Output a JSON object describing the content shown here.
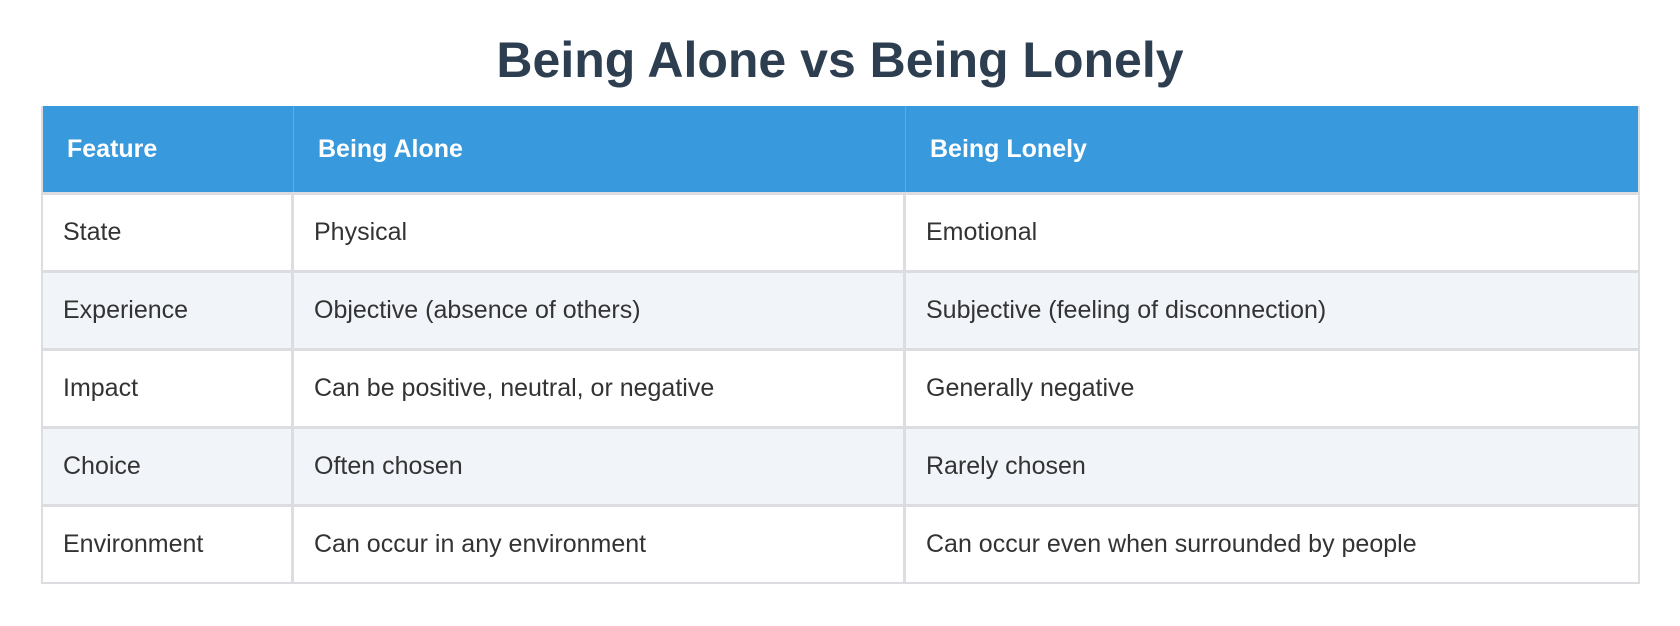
{
  "title": "Being Alone vs Being Lonely",
  "table": {
    "headers": [
      "Feature",
      "Being Alone",
      "Being Lonely"
    ],
    "rows": [
      [
        "State",
        "Physical",
        "Emotional"
      ],
      [
        "Experience",
        "Objective (absence of others)",
        "Subjective (feeling of disconnection)"
      ],
      [
        "Impact",
        "Can be positive, neutral, or negative",
        "Generally negative"
      ],
      [
        "Choice",
        "Often chosen",
        "Rarely chosen"
      ],
      [
        "Environment",
        "Can occur in any environment",
        "Can occur even when surrounded by people"
      ]
    ]
  },
  "colors": {
    "title": "#2c3e50",
    "header_bg": "#3899dc",
    "header_text": "#ffffff",
    "row_alt_bg": "#f1f4f8",
    "border": "#dcdde1",
    "cell_text": "#333333"
  }
}
